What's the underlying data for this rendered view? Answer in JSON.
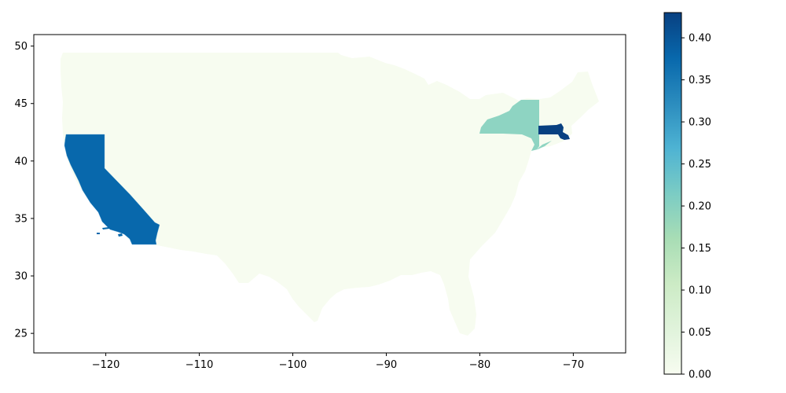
{
  "map": {
    "xlim": [
      -127.7,
      -64.4
    ],
    "ylim": [
      23.3,
      51.0
    ],
    "x_ticks": [
      -120,
      -110,
      -100,
      -90,
      -80,
      -70
    ],
    "x_tick_labels": [
      "−120",
      "−110",
      "−100",
      "−90",
      "−80",
      "−70"
    ],
    "y_ticks": [
      25,
      30,
      35,
      40,
      45,
      50
    ],
    "y_tick_labels": [
      "25",
      "30",
      "35",
      "40",
      "45",
      "50"
    ],
    "regions": [
      {
        "name": "Contiguous US (other states)",
        "value": 0.0
      },
      {
        "name": "California",
        "value": 0.35
      },
      {
        "name": "New York",
        "value": 0.19
      },
      {
        "name": "Massachusetts",
        "value": 0.42
      }
    ]
  },
  "colorbar": {
    "colormap": "GnBu",
    "range": [
      0.0,
      0.43
    ],
    "ticks": [
      0.0,
      0.05,
      0.1,
      0.15,
      0.2,
      0.25,
      0.3,
      0.35,
      0.4
    ],
    "tick_labels": [
      "0.00",
      "0.05",
      "0.10",
      "0.15",
      "0.20",
      "0.25",
      "0.30",
      "0.35",
      "0.40"
    ],
    "stops": [
      "#f7fcf0",
      "#e0f3db",
      "#ccebc5",
      "#a8ddb5",
      "#7bccc4",
      "#4eb3d3",
      "#2b8cbe",
      "#0868ac",
      "#084081"
    ]
  }
}
